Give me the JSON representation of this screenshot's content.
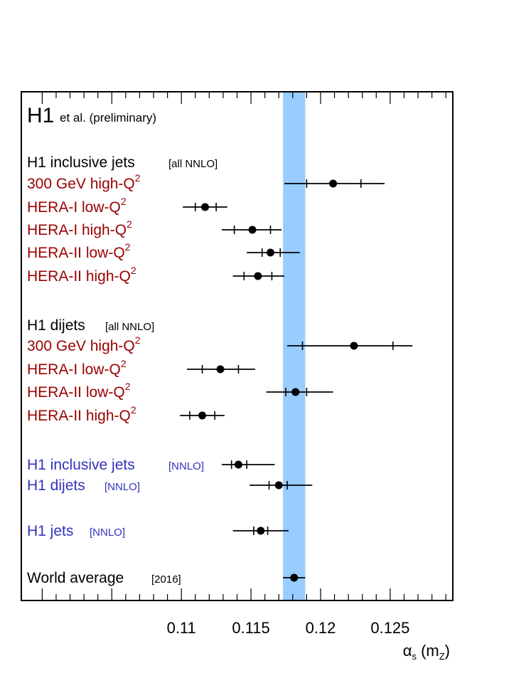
{
  "chart_data": {
    "type": "scatter",
    "title": "H1",
    "subtitle": "et al. (preliminary)",
    "xlim": [
      0.0985,
      0.1295
    ],
    "xticks": [
      0.11,
      0.115,
      0.12,
      0.125
    ],
    "xtick_labels": [
      "0.11",
      "0.115",
      "0.12",
      "0.125"
    ],
    "xlabel": "αs (mZ)",
    "xlabel_parts": {
      "alpha": "α",
      "alpha_sub": "s",
      "open": " (m",
      "m_sub": "Z",
      "close": ")"
    },
    "band": {
      "center": 0.1181,
      "low": 0.1173,
      "high": 0.1189,
      "color": "#99ccff"
    },
    "colors": {
      "header": "#000000",
      "sub": "#990000",
      "nnlo": "#3333bb",
      "marker": "#000000"
    },
    "rows": [
      {
        "id": "inc-header",
        "label": "H1 inclusive jets",
        "tag": "[all NNLO]",
        "style": "header"
      },
      {
        "id": "inc-300",
        "label": "300 GeV high-Q",
        "sup": "2",
        "style": "sub",
        "value": 0.1209,
        "inner": [
          0.119,
          0.1229
        ],
        "outer": [
          0.1174,
          0.1246
        ]
      },
      {
        "id": "inc-hera1-low",
        "label": "HERA-I low-Q",
        "sup": "2",
        "style": "sub",
        "value": 0.1117,
        "inner": [
          0.111,
          0.1125
        ],
        "outer": [
          0.1101,
          0.1133
        ]
      },
      {
        "id": "inc-hera1-high",
        "label": "HERA-I high-Q",
        "sup": "2",
        "style": "sub",
        "value": 0.1151,
        "inner": [
          0.1138,
          0.1164
        ],
        "outer": [
          0.1129,
          0.1172
        ]
      },
      {
        "id": "inc-hera2-low",
        "label": "HERA-II low-Q",
        "sup": "2",
        "style": "sub",
        "value": 0.1164,
        "inner": [
          0.1158,
          0.1171
        ],
        "outer": [
          0.1147,
          0.1185
        ]
      },
      {
        "id": "inc-hera2-high",
        "label": "HERA-II high-Q",
        "sup": "2",
        "style": "sub",
        "value": 0.1155,
        "inner": [
          0.1145,
          0.1165
        ],
        "outer": [
          0.1137,
          0.1174
        ]
      },
      {
        "id": "di-header",
        "label": "H1 dijets",
        "tag": "[all NNLO]",
        "style": "header"
      },
      {
        "id": "di-300",
        "label": "300 GeV high-Q",
        "sup": "2",
        "style": "sub",
        "value": 0.1224,
        "inner": [
          0.1187,
          0.1252
        ],
        "outer": [
          0.1176,
          0.1266
        ]
      },
      {
        "id": "di-hera1-low",
        "label": "HERA-I  low-Q",
        "sup": "2",
        "style": "sub",
        "value": 0.1128,
        "inner": [
          0.1115,
          0.1141
        ],
        "outer": [
          0.1104,
          0.1153
        ]
      },
      {
        "id": "di-hera2-low",
        "label": "HERA-II low-Q",
        "sup": "2",
        "style": "sub",
        "value": 0.1182,
        "inner": [
          0.1175,
          0.119
        ],
        "outer": [
          0.1161,
          0.1209
        ]
      },
      {
        "id": "di-hera2-high",
        "label": "HERA-II high-Q",
        "sup": "2",
        "style": "sub",
        "value": 0.1115,
        "inner": [
          0.1106,
          0.1124
        ],
        "outer": [
          0.1099,
          0.1131
        ]
      },
      {
        "id": "nnlo-inc",
        "label": "H1 inclusive jets",
        "tag": "[NNLO]",
        "style": "nnlo",
        "value": 0.1141,
        "inner": [
          0.1136,
          0.1147
        ],
        "outer": [
          0.1129,
          0.1167
        ]
      },
      {
        "id": "nnlo-di",
        "label": "H1 dijets",
        "tag": "[NNLO]",
        "style": "nnlo",
        "value": 0.117,
        "inner": [
          0.1163,
          0.1176
        ],
        "outer": [
          0.1149,
          0.1194
        ]
      },
      {
        "id": "nnlo-jets",
        "label": "H1 jets",
        "tag": "[NNLO]",
        "style": "nnlo",
        "value": 0.1157,
        "inner": [
          0.1152,
          0.1162
        ],
        "outer": [
          0.1137,
          0.1177
        ]
      },
      {
        "id": "world-avg",
        "label": "World average",
        "tag": "[2016]",
        "style": "header",
        "value": 0.1181,
        "inner": [
          0.1173,
          0.1189
        ],
        "outer": [
          0.1173,
          0.1189
        ]
      }
    ]
  }
}
